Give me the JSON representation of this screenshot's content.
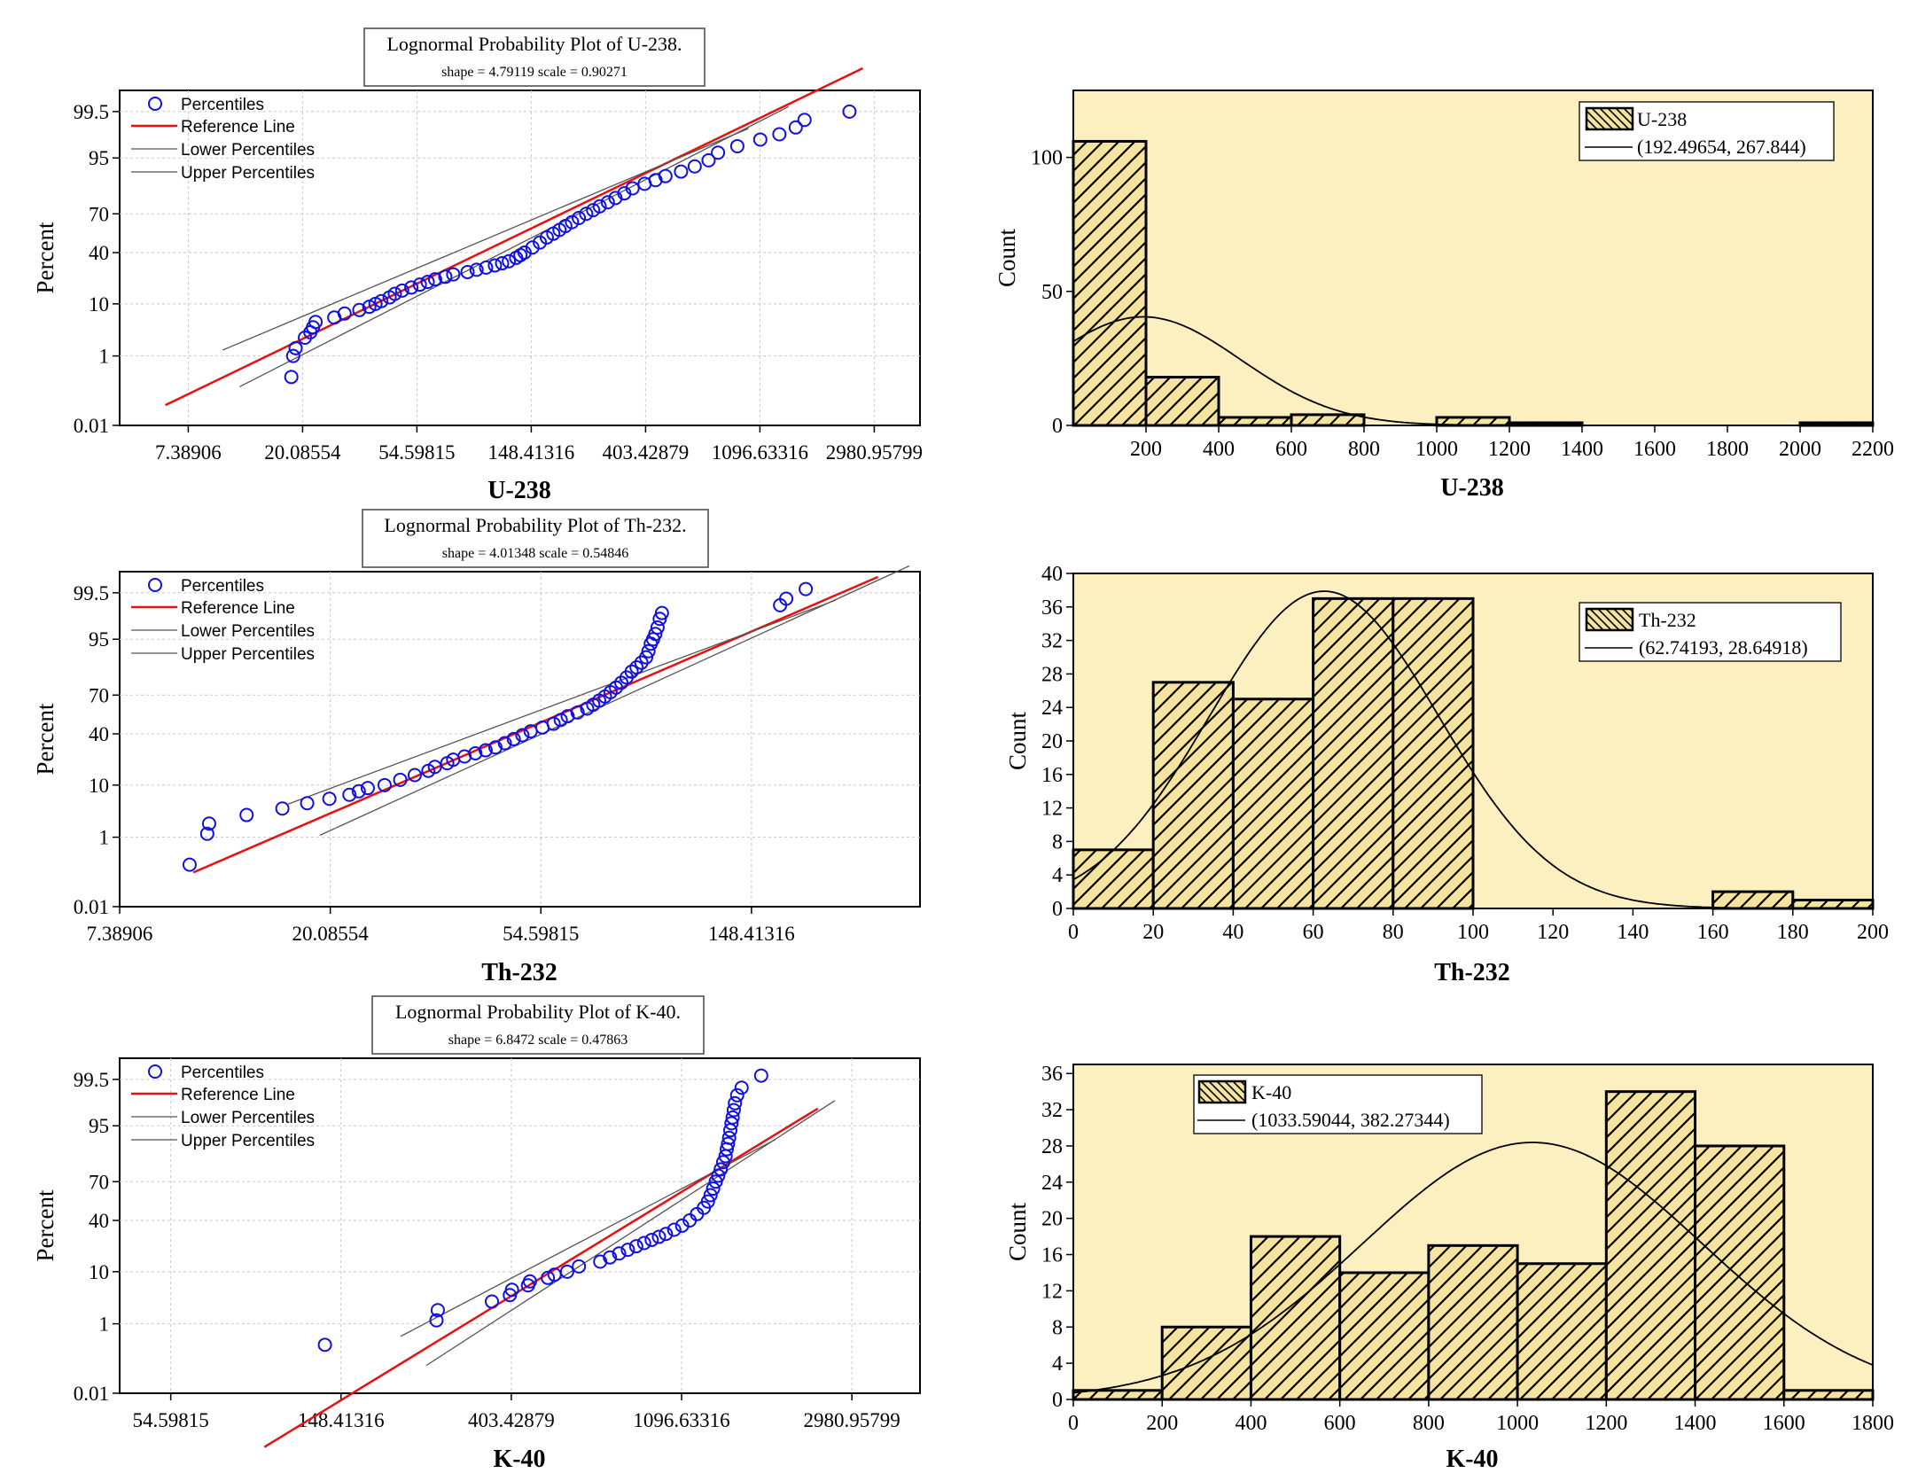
{
  "chart_data": [
    {
      "type": "scatter",
      "subtype": "lognormal-probability",
      "title": "Lognormal Probability Plot of U-238.",
      "subtitle": "shape = 4.79119  scale = 0.90271",
      "xlabel": "U-238",
      "ylabel": "Percent",
      "x_ticks": [
        "7.38906",
        "20.08554",
        "54.59815",
        "148.41316",
        "403.42879",
        "1096.63316",
        "2980.95799"
      ],
      "y_ticks": [
        "0.01",
        "1",
        "10",
        "40",
        "70",
        "95",
        "99.5"
      ],
      "legend": [
        "Percentiles",
        "Reference Line",
        "Lower Percentiles",
        "Upper Percentiles"
      ],
      "shape": 4.79119,
      "scale": 0.90271,
      "xrange_ln": [
        1.4,
        8.4
      ],
      "yrange_z": [
        -3.72,
        3.0
      ],
      "x_values": [
        18.2,
        18.5,
        18.9,
        20.5,
        21.5,
        22.0,
        22.5,
        26.5,
        29,
        33,
        36,
        38,
        40,
        43,
        45,
        48,
        52,
        56,
        60,
        64,
        70,
        75,
        85,
        92,
        100,
        108,
        115,
        122,
        130,
        135,
        140,
        150,
        160,
        170,
        180,
        190,
        200,
        212,
        225,
        240,
        255,
        270,
        290,
        310,
        335,
        360,
        400,
        440,
        480,
        550,
        620,
        700,
        760,
        900,
        1100,
        1300,
        1500,
        1620,
        2400
      ],
      "percentiles": [
        0.3,
        1.0,
        1.5,
        2.5,
        3.2,
        4.0,
        5.0,
        6.0,
        7.0,
        8.0,
        9.0,
        10.0,
        11.0,
        12.5,
        14.0,
        15.5,
        17.0,
        18.5,
        20.0,
        21.5,
        23.0,
        24.5,
        26.0,
        27.5,
        29.0,
        30.5,
        32.0,
        33.5,
        36.0,
        38.0,
        40.0,
        44.0,
        48.0,
        52.0,
        55.0,
        58.0,
        61.0,
        64.0,
        67.0,
        70.0,
        72.5,
        75.0,
        77.5,
        80.0,
        82.5,
        85.0,
        87.0,
        88.5,
        90.0,
        91.5,
        93.0,
        94.5,
        96.0,
        97.0,
        97.8,
        98.3,
        98.8,
        99.2,
        99.5
      ]
    },
    {
      "type": "scatter",
      "subtype": "lognormal-probability",
      "title": "Lognormal Probability Plot of Th-232.",
      "subtitle": "shape = 4.01348  scale = 0.54846",
      "xlabel": "Th-232",
      "ylabel": "Percent",
      "x_ticks": [
        "7.38906",
        "20.08554",
        "54.59815",
        "148.41316"
      ],
      "y_ticks": [
        "0.01",
        "1",
        "10",
        "40",
        "70",
        "95",
        "99.5"
      ],
      "legend": [
        "Percentiles",
        "Reference Line",
        "Lower Percentiles",
        "Upper Percentiles"
      ],
      "shape": 4.01348,
      "scale": 0.54846,
      "xrange_ln": [
        2.0,
        5.8
      ],
      "yrange_z": [
        -3.72,
        3.0
      ],
      "x_values": [
        10.3,
        11.2,
        11.3,
        13.5,
        16,
        18,
        20,
        22,
        23,
        24,
        26,
        28,
        30,
        32,
        33,
        35,
        36,
        38,
        40,
        42,
        44,
        46,
        48,
        50,
        52,
        55,
        58,
        60,
        62,
        65,
        68,
        70,
        72,
        74,
        76,
        78,
        80,
        82,
        84,
        86,
        88,
        90,
        91,
        92,
        93,
        94,
        95,
        96,
        97,
        170,
        175,
        192
      ],
      "percentiles": [
        0.2,
        1.2,
        2.0,
        3.0,
        4.0,
        5.0,
        6.0,
        7.0,
        8.0,
        9.0,
        10.0,
        12.0,
        14.0,
        16.0,
        18.0,
        20.0,
        22.0,
        24.0,
        26.0,
        28.0,
        30.0,
        33.0,
        36.0,
        39.0,
        42.0,
        45.0,
        48.0,
        51.0,
        54.0,
        57.0,
        60.0,
        63.0,
        66.0,
        69.0,
        72.0,
        75.0,
        78.0,
        81.0,
        84.0,
        86.0,
        88.0,
        90.0,
        92.0,
        94.0,
        95.0,
        96.0,
        97.0,
        98.0,
        98.5,
        99.0,
        99.3,
        99.6
      ]
    },
    {
      "type": "scatter",
      "subtype": "lognormal-probability",
      "title": "Lognormal Probability Plot of K-40.",
      "subtitle": "shape = 6.8472  scale = 0.47863",
      "xlabel": "K-40",
      "ylabel": "Percent",
      "x_ticks": [
        "54.59815",
        "148.41316",
        "403.42879",
        "1096.63316",
        "2980.95799"
      ],
      "y_ticks": [
        "0.01",
        "1",
        "10",
        "40",
        "70",
        "95",
        "99.5"
      ],
      "legend": [
        "Percentiles",
        "Reference Line",
        "Lower Percentiles",
        "Upper Percentiles"
      ],
      "shape": 6.8472,
      "scale": 0.47863,
      "xrange_ln": [
        3.7,
        8.4
      ],
      "yrange_z": [
        -3.72,
        3.0
      ],
      "x_values": [
        135,
        260,
        262,
        360,
        400,
        405,
        445,
        450,
        500,
        520,
        560,
        600,
        680,
        720,
        760,
        800,
        840,
        880,
        920,
        960,
        1000,
        1050,
        1100,
        1150,
        1200,
        1250,
        1280,
        1300,
        1320,
        1340,
        1360,
        1380,
        1400,
        1420,
        1430,
        1440,
        1450,
        1460,
        1470,
        1480,
        1490,
        1500,
        1520,
        1560,
        1750
      ],
      "percentiles": [
        0.3,
        1.2,
        2.0,
        3.0,
        4.0,
        5.0,
        6.0,
        7.0,
        8.0,
        9.0,
        10.0,
        12.0,
        14.0,
        16.0,
        18.0,
        20.0,
        22.0,
        24.0,
        26.0,
        28.0,
        30.0,
        33.0,
        36.0,
        40.0,
        45.0,
        50.0,
        55.0,
        60.0,
        65.0,
        70.0,
        74.0,
        78.0,
        82.0,
        85.0,
        88.0,
        90.0,
        92.0,
        94.0,
        95.5,
        96.5,
        97.5,
        98.2,
        98.8,
        99.2,
        99.6
      ]
    },
    {
      "type": "bar",
      "subtype": "histogram-with-normal-fit",
      "xlabel": "U-238",
      "ylabel": "Count",
      "x_ticks": [
        "200",
        "400",
        "600",
        "800",
        "1000",
        "1200",
        "1400",
        "1600",
        "1800",
        "2000",
        "2200"
      ],
      "y_ticks": [
        "0",
        "50",
        "100"
      ],
      "xlim": [
        0,
        2200
      ],
      "ylim": [
        0,
        125
      ],
      "bin_width": 200,
      "bin_starts": [
        0,
        200,
        400,
        600,
        1000,
        1200,
        2000
      ],
      "counts": [
        106,
        18,
        3,
        4,
        3,
        1,
        1
      ],
      "legend_label": "U-238",
      "fit_label": "(192.49654, 267.844)",
      "fit_mean": 192.49654,
      "fit_sd": 267.844,
      "n": 136
    },
    {
      "type": "bar",
      "subtype": "histogram-with-normal-fit",
      "xlabel": "Th-232",
      "ylabel": "Count",
      "x_ticks": [
        "0",
        "20",
        "40",
        "60",
        "80",
        "100",
        "120",
        "140",
        "160",
        "180",
        "200"
      ],
      "y_ticks": [
        "0",
        "4",
        "8",
        "12",
        "16",
        "20",
        "24",
        "28",
        "32",
        "36",
        "40"
      ],
      "xlim": [
        0,
        200
      ],
      "ylim": [
        0,
        40
      ],
      "bin_width": 20,
      "bin_starts": [
        0,
        20,
        40,
        60,
        80,
        160,
        180
      ],
      "counts": [
        7,
        27,
        25,
        37,
        37,
        2,
        1
      ],
      "legend_label": "Th-232",
      "fit_label": "(62.74193, 28.64918)",
      "fit_mean": 62.74193,
      "fit_sd": 28.64918,
      "n": 136
    },
    {
      "type": "bar",
      "subtype": "histogram-with-normal-fit",
      "xlabel": "K-40",
      "ylabel": "Count",
      "x_ticks": [
        "0",
        "200",
        "400",
        "600",
        "800",
        "1000",
        "1200",
        "1400",
        "1600",
        "1800"
      ],
      "y_ticks": [
        "0",
        "4",
        "8",
        "12",
        "16",
        "20",
        "24",
        "28",
        "32",
        "36"
      ],
      "xlim": [
        0,
        1800
      ],
      "ylim": [
        0,
        37
      ],
      "bin_width": 200,
      "bin_starts": [
        0,
        200,
        400,
        600,
        800,
        1000,
        1200,
        1400,
        1600
      ],
      "counts": [
        1,
        8,
        18,
        14,
        17,
        15,
        34,
        28,
        1
      ],
      "legend_label": "K-40",
      "fit_label": "(1033.59044, 382.27344)",
      "fit_mean": 1033.59044,
      "fit_sd": 382.27344,
      "n": 136
    }
  ],
  "colors": {
    "points": "#1010e0",
    "reference_line": "#e81010",
    "percentile_lines": "#555555",
    "histogram_bg": "#fcefc0",
    "bar_fill": "#f4e4a0",
    "frame": "#000000"
  }
}
